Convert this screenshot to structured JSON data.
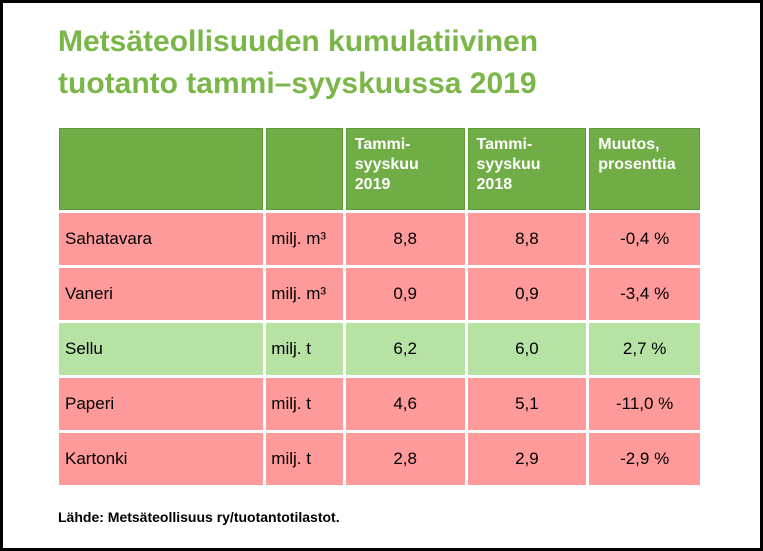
{
  "slide": {
    "title_line1": "Metsäteollisuuden kumulatiivinen",
    "title_line2": "tuotanto tammi–syyskuussa 2019",
    "source": "Lähde: Metsäteollisuus ry/tuotantotilastot."
  },
  "table": {
    "headers": [
      "",
      "",
      "Tammi-\nsyyskuu\n2019",
      "Tammi-\nsyyskuu\n2018",
      "Muutos,\nprosenttia"
    ],
    "rows": [
      {
        "name": "Sahatavara",
        "unit": "milj. m³",
        "v2019": "8,8",
        "v2018": "8,8",
        "change": "-0,4 %",
        "status": "negative"
      },
      {
        "name": "Vaneri",
        "unit": "milj. m³",
        "v2019": "0,9",
        "v2018": "0,9",
        "change": "-3,4 %",
        "status": "negative"
      },
      {
        "name": "Sellu",
        "unit": "milj. t",
        "v2019": "6,2",
        "v2018": "6,0",
        "change": "2,7 %",
        "status": "positive"
      },
      {
        "name": "Paperi",
        "unit": "milj. t",
        "v2019": "4,6",
        "v2018": "5,1",
        "change": "-11,0 %",
        "status": "negative"
      },
      {
        "name": "Kartonki",
        "unit": "milj. t",
        "v2019": "2,8",
        "v2018": "2,9",
        "change": "-2,9 %",
        "status": "negative"
      }
    ]
  },
  "colors": {
    "title": "#7ab648",
    "header_bg": "#70ad47",
    "negative_row": "#ff9a9a",
    "positive_row": "#b6e2a4"
  }
}
